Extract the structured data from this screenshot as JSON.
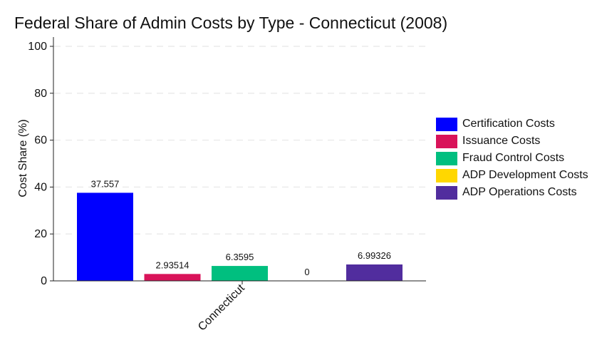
{
  "chart_data": {
    "type": "bar",
    "title": "Federal Share of Admin Costs by Type - Connecticut (2008)",
    "xlabel": "",
    "ylabel": "Cost Share (%)",
    "categories": [
      "Connecticut"
    ],
    "ylim": [
      0,
      100
    ],
    "yticks": [
      0,
      20,
      40,
      60,
      80,
      100
    ],
    "grid": "horizontal-dashed",
    "legend_position": "right",
    "series": [
      {
        "name": "Certification Costs",
        "values": [
          37.557
        ],
        "label": "37.557",
        "color": "#0000ff"
      },
      {
        "name": "Issuance Costs",
        "values": [
          2.93514
        ],
        "label": "2.93514",
        "color": "#d9135a"
      },
      {
        "name": "Fraud Control Costs",
        "values": [
          6.3595
        ],
        "label": "6.3595",
        "color": "#00bf7f"
      },
      {
        "name": "ADP Development Costs",
        "values": [
          0
        ],
        "label": "0",
        "color": "#ffd700"
      },
      {
        "name": "ADP Operations Costs",
        "values": [
          6.99326
        ],
        "label": "6.99326",
        "color": "#512d9e"
      }
    ]
  }
}
